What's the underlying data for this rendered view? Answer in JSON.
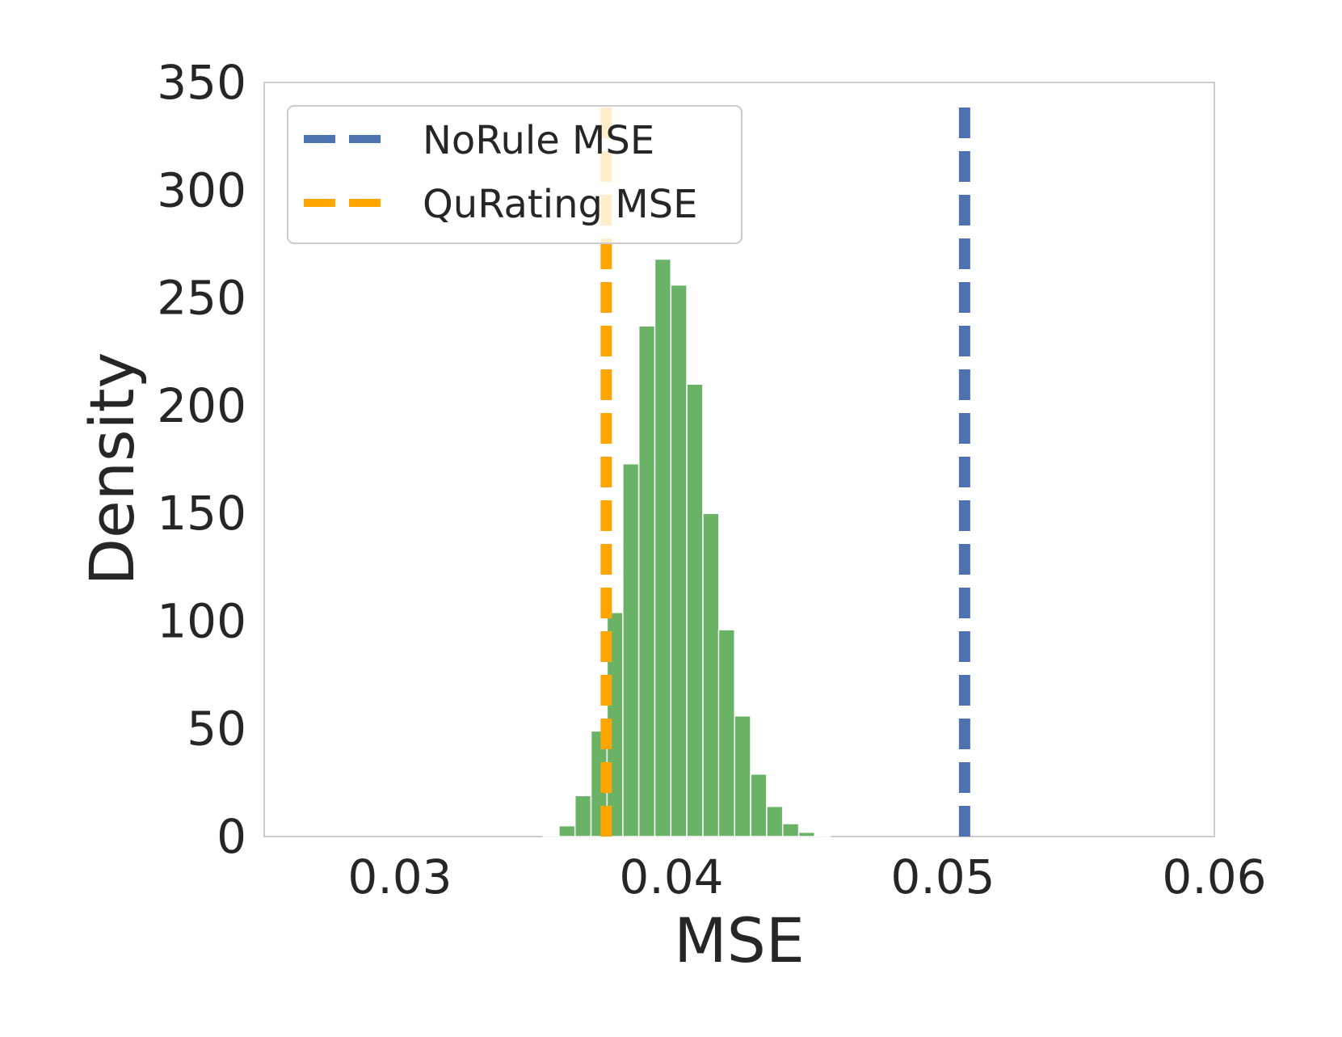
{
  "chart_data": {
    "type": "bar",
    "subtype": "histogram",
    "xlabel": "MSE",
    "ylabel": "Density",
    "xlim": [
      0.025,
      0.06
    ],
    "ylim": [
      0,
      350
    ],
    "xticks": [
      0.03,
      0.04,
      0.05,
      0.06
    ],
    "xtick_labels": [
      "0.03",
      "0.04",
      "0.05",
      "0.06"
    ],
    "yticks": [
      0,
      50,
      100,
      150,
      200,
      250,
      300,
      350
    ],
    "ytick_labels": [
      "0",
      "50",
      "100",
      "150",
      "200",
      "250",
      "300",
      "350"
    ],
    "grid": false,
    "bin_width": 0.000588,
    "bins": [
      {
        "x0": 0.03527,
        "value": 0.5
      },
      {
        "x0": 0.03586,
        "value": 5
      },
      {
        "x0": 0.03645,
        "value": 19
      },
      {
        "x0": 0.03704,
        "value": 49
      },
      {
        "x0": 0.03763,
        "value": 104
      },
      {
        "x0": 0.03821,
        "value": 173
      },
      {
        "x0": 0.0388,
        "value": 237
      },
      {
        "x0": 0.03939,
        "value": 268
      },
      {
        "x0": 0.03998,
        "value": 256
      },
      {
        "x0": 0.04057,
        "value": 210
      },
      {
        "x0": 0.04116,
        "value": 150
      },
      {
        "x0": 0.04174,
        "value": 96
      },
      {
        "x0": 0.04233,
        "value": 56
      },
      {
        "x0": 0.04292,
        "value": 29
      },
      {
        "x0": 0.04351,
        "value": 14
      },
      {
        "x0": 0.0441,
        "value": 6
      },
      {
        "x0": 0.04469,
        "value": 2
      },
      {
        "x0": 0.04527,
        "value": 0.5
      }
    ],
    "reference_lines": [
      {
        "name": "NoRule MSE",
        "x": 0.0508,
        "color": "#4c72b0",
        "style": "dashed"
      },
      {
        "name": "QuRating MSE",
        "x": 0.0376,
        "color": "#ffa500",
        "style": "dashed"
      }
    ],
    "bar_color": "#6ab266",
    "legend_position": "upper-left"
  }
}
